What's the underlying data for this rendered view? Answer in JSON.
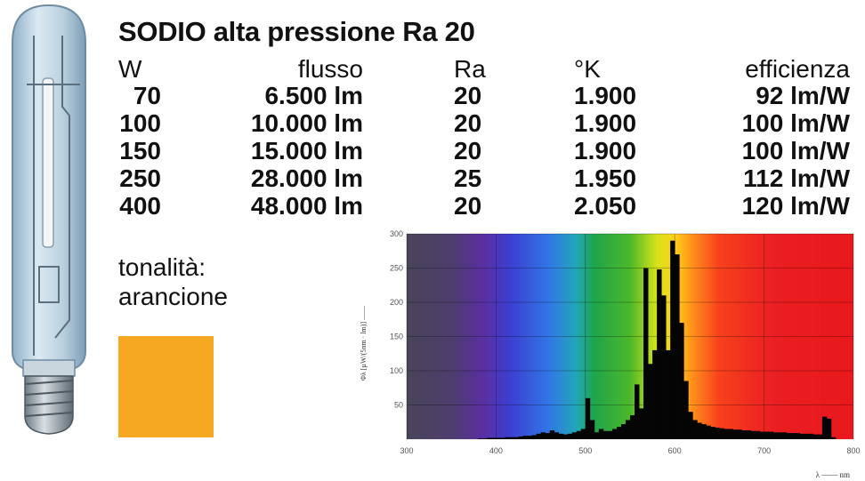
{
  "title": "SODIO alta pressione Ra 20",
  "table": {
    "headers": [
      "W",
      "flusso",
      "Ra",
      "°K",
      "efficienza"
    ],
    "rows": [
      [
        "70",
        "6.500 lm",
        "20",
        "1.900",
        "92 lm/W"
      ],
      [
        "100",
        "10.000 lm",
        "20",
        "1.900",
        "100 lm/W"
      ],
      [
        "150",
        "15.000 lm",
        "20",
        "1.900",
        "100 lm/W"
      ],
      [
        "250",
        "28.000 lm",
        "25",
        "1.950",
        "112 lm/W"
      ],
      [
        "400",
        "48.000 lm",
        "20",
        "2.050",
        "120 lm/W"
      ]
    ]
  },
  "tonality": {
    "label": "tonalità:",
    "value": "arancione",
    "swatch_color": "#f7a823"
  },
  "chart_data": {
    "type": "bar",
    "title": "",
    "xlabel": "λ —— nm",
    "ylabel": "Φλ [µW/(5nm · lm)] ——",
    "xlim": [
      300,
      800
    ],
    "ylim": [
      0,
      300
    ],
    "x_ticks": [
      300,
      400,
      500,
      600,
      700,
      800
    ],
    "y_ticks": [
      50,
      100,
      150,
      200,
      250,
      300
    ],
    "grid": true,
    "background": "visible spectrum gradient",
    "series": [
      {
        "x": [
          380,
          385,
          390,
          395,
          400,
          405,
          410,
          415,
          420,
          425,
          430,
          435,
          440,
          445,
          450,
          455,
          460,
          465,
          470,
          475,
          480,
          485,
          490,
          495,
          500,
          505,
          510,
          515,
          520,
          525,
          530,
          535,
          540,
          545,
          550,
          555,
          560,
          565,
          570,
          575,
          580,
          585,
          590,
          595,
          600,
          605,
          610,
          615,
          620,
          625,
          630,
          635,
          640,
          645,
          650,
          655,
          660,
          665,
          670,
          675,
          680,
          685,
          690,
          695,
          700,
          705,
          710,
          715,
          720,
          725,
          730,
          735,
          740,
          745,
          750,
          755,
          760,
          765,
          770,
          775
        ],
        "values": [
          1,
          1,
          2,
          2,
          2,
          2,
          3,
          3,
          3,
          4,
          5,
          5,
          6,
          8,
          10,
          9,
          13,
          10,
          8,
          7,
          8,
          10,
          12,
          15,
          60,
          28,
          10,
          15,
          12,
          12,
          15,
          18,
          22,
          28,
          35,
          80,
          45,
          250,
          110,
          130,
          248,
          210,
          130,
          290,
          270,
          170,
          85,
          40,
          28,
          24,
          22,
          20,
          18,
          17,
          16,
          15,
          15,
          14,
          14,
          13,
          13,
          12,
          12,
          11,
          11,
          11,
          10,
          10,
          10,
          9,
          9,
          9,
          8,
          8,
          8,
          7,
          7,
          33,
          30,
          3
        ]
      }
    ]
  }
}
